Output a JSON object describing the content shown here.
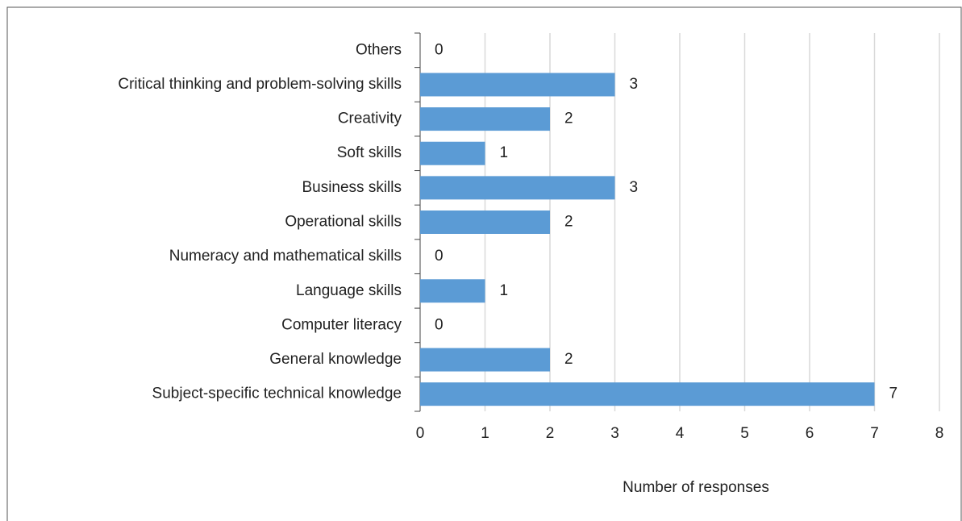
{
  "chart_data": {
    "type": "bar",
    "orientation": "horizontal",
    "x_label": "Number of responses",
    "categories": [
      "Others",
      "Critical thinking and problem-solving skills",
      "Creativity",
      "Soft skills",
      "Business skills",
      "Operational skills",
      "Numeracy and mathematical skills",
      "Language skills",
      "Computer literacy",
      "General knowledge",
      "Subject-specific technical knowledge"
    ],
    "values": [
      0,
      3,
      2,
      1,
      3,
      2,
      0,
      1,
      0,
      2,
      7
    ],
    "color": "#5b9bd5",
    "xlim": [
      0,
      8
    ],
    "xticks": [
      0,
      1,
      2,
      3,
      4,
      5,
      6,
      7,
      8
    ],
    "grid": true
  }
}
